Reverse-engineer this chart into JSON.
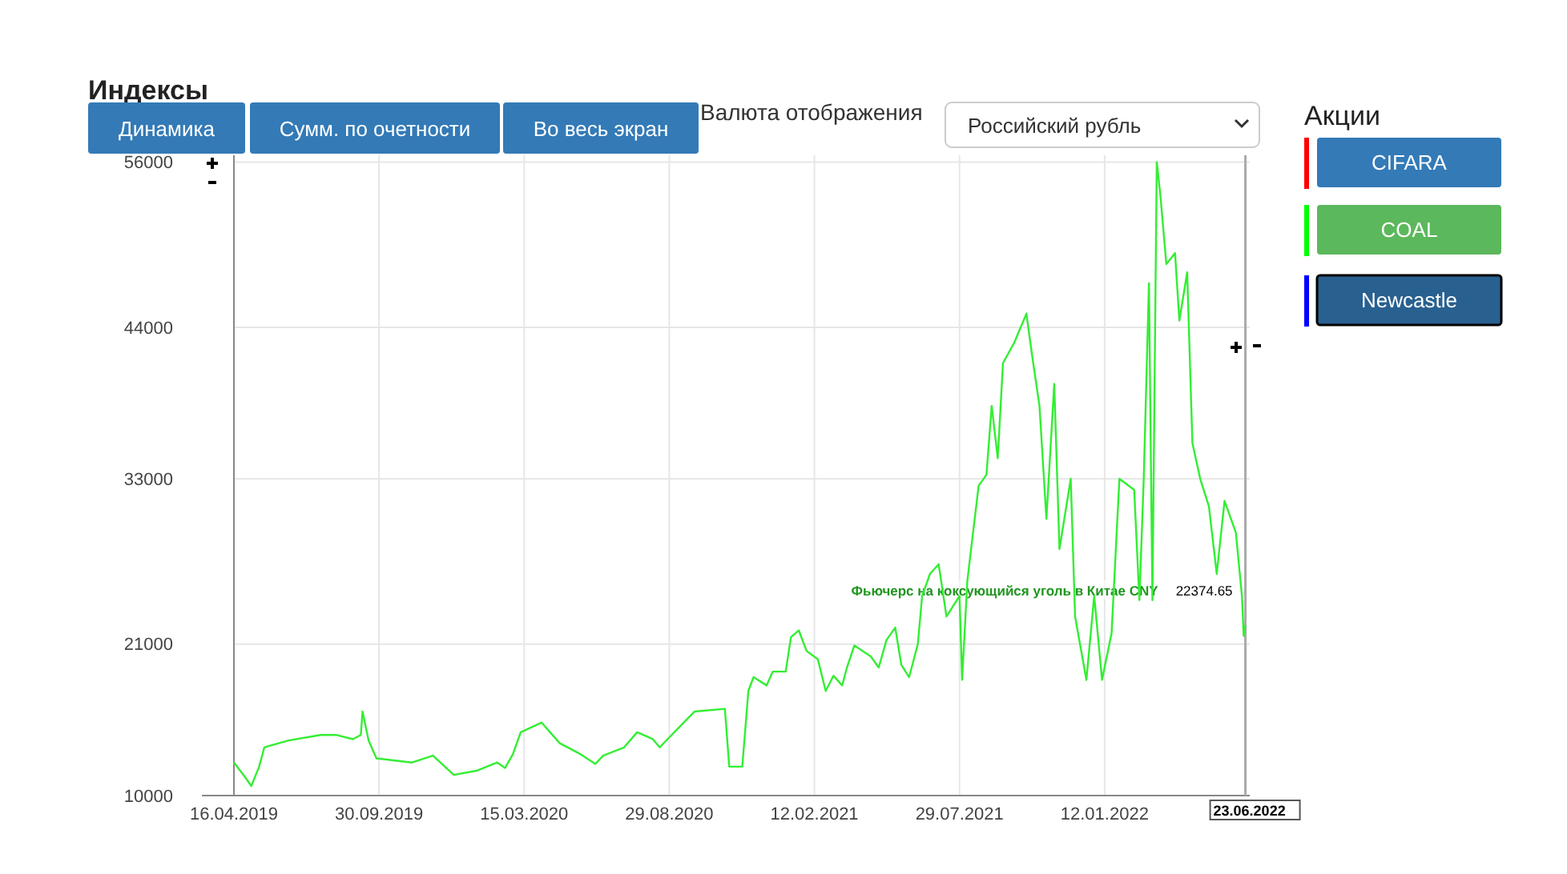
{
  "chart_data": {
    "type": "line",
    "title": "Индексы",
    "x": [
      "2019-04-16",
      "2019-04-27",
      "2019-05-06",
      "2019-05-15",
      "2019-05-21",
      "2019-05-26",
      "2019-06-18",
      "2019-07-25",
      "2019-08-12",
      "2019-08-31",
      "2019-09-09",
      "2019-09-11",
      "2019-09-18",
      "2019-09-27",
      "2019-11-07",
      "2019-12-01",
      "2019-12-25",
      "2020-01-20",
      "2020-02-13",
      "2020-02-22",
      "2020-03-02",
      "2020-03-11",
      "2020-04-04",
      "2020-04-25",
      "2020-05-19",
      "2020-06-05",
      "2020-06-14",
      "2020-07-08",
      "2020-07-23",
      "2020-08-10",
      "2020-08-18",
      "2020-08-27",
      "2020-09-27",
      "2020-11-01",
      "2020-11-06",
      "2020-11-21",
      "2020-11-28",
      "2020-12-04",
      "2020-12-19",
      "2020-12-26",
      "2021-01-10",
      "2021-01-16",
      "2021-01-25",
      "2021-02-03",
      "2021-02-16",
      "2021-02-25",
      "2021-03-06",
      "2021-03-16",
      "2021-03-21",
      "2021-03-30",
      "2021-04-18",
      "2021-04-27",
      "2021-05-06",
      "2021-05-16",
      "2021-05-23",
      "2021-06-01",
      "2021-06-11",
      "2021-06-16",
      "2021-06-25",
      "2021-07-05",
      "2021-07-14",
      "2021-07-29",
      "2021-08-01",
      "2021-08-07",
      "2021-08-20",
      "2021-08-29",
      "2021-09-04",
      "2021-09-11",
      "2021-09-17",
      "2021-09-30",
      "2021-10-14",
      "2021-10-20",
      "2021-10-29",
      "2021-11-06",
      "2021-11-15",
      "2021-11-21",
      "2021-12-04",
      "2021-12-09",
      "2021-12-22",
      "2021-12-31",
      "2022-01-09",
      "2022-01-20",
      "2022-01-29",
      "2022-02-15",
      "2022-02-21",
      "2022-02-26",
      "2022-03-04",
      "2022-03-08",
      "2022-03-13",
      "2022-03-17",
      "2022-03-24",
      "2022-04-03",
      "2022-04-08",
      "2022-04-17",
      "2022-04-23",
      "2022-05-02",
      "2022-05-12",
      "2022-05-21",
      "2022-05-30",
      "2022-06-12",
      "2022-06-19",
      "2022-06-21",
      "2022-06-23"
    ],
    "series": [
      {
        "name": "Фьючерс на коксующийся уголь в Китае CNY",
        "color": "#33ee33",
        "values": [
          12400,
          11500,
          10700,
          12100,
          13500,
          13600,
          14000,
          14400,
          14400,
          14100,
          14400,
          16100,
          14000,
          12700,
          12400,
          12900,
          11500,
          11800,
          12400,
          12000,
          13000,
          14600,
          15300,
          13800,
          13000,
          12300,
          12900,
          13500,
          14600,
          14100,
          13500,
          14100,
          16100,
          16300,
          12100,
          12100,
          17600,
          18600,
          18000,
          19000,
          19000,
          21500,
          22000,
          20500,
          19900,
          17600,
          18700,
          18000,
          19200,
          20900,
          20100,
          19300,
          21300,
          22200,
          19500,
          18600,
          21000,
          24500,
          26100,
          26800,
          23000,
          24500,
          18400,
          25600,
          32500,
          33300,
          38300,
          34500,
          41400,
          42900,
          45000,
          42200,
          38300,
          30100,
          39900,
          27900,
          33000,
          23000,
          18400,
          24500,
          18400,
          21800,
          33000,
          32200,
          24200,
          33000,
          47200,
          24200,
          56000,
          53700,
          48600,
          49400,
          44500,
          48000,
          35600,
          33000,
          31000,
          26100,
          31400,
          29100,
          24500,
          21600,
          22374.65
        ]
      }
    ],
    "xlim": [
      "2019-04-16",
      "2022-06-28"
    ],
    "xticks": [
      {
        "value": "2019-04-16",
        "label": "16.04.2019"
      },
      {
        "value": "2019-09-30",
        "label": "30.09.2019"
      },
      {
        "value": "2020-03-15",
        "label": "15.03.2020"
      },
      {
        "value": "2020-08-29",
        "label": "29.08.2020"
      },
      {
        "value": "2021-02-12",
        "label": "12.02.2021"
      },
      {
        "value": "2021-07-29",
        "label": "29.07.2021"
      },
      {
        "value": "2022-01-12",
        "label": "12.01.2022"
      }
    ],
    "ylim": [
      10000,
      56500
    ],
    "yticks": [
      10000,
      21000,
      33000,
      44000,
      56000
    ],
    "grid": true,
    "ref_lines": [
      {
        "axis": "x",
        "value": "2022-06-23",
        "label": "23.06.2022",
        "color": "#aaaaaa"
      }
    ],
    "annotations": [
      "Динамика",
      "Сумм. по очетности",
      "Во весь экран",
      "Валюта отображения",
      "Российский рубль",
      "Акции",
      "CIFARA",
      "COAL",
      "Newcastle",
      {
        "text": "22374.65",
        "x": "2022-06-23",
        "y": 22374.65
      }
    ]
  }
}
